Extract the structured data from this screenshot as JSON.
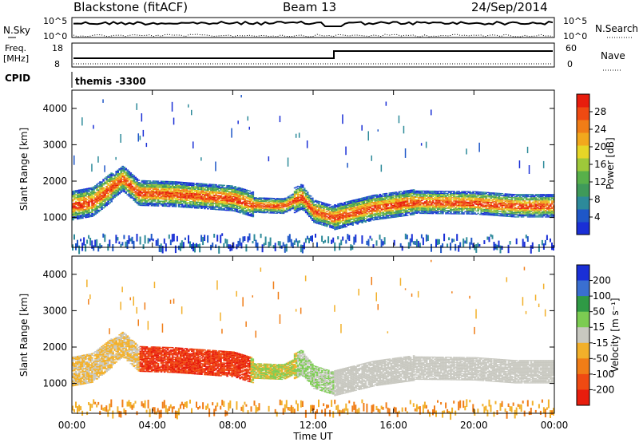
{
  "header": {
    "station": "Blackstone (fitACF)",
    "beam": "Beam 13",
    "date": "24/Sep/2014"
  },
  "summary_panels": {
    "nsky_label": "N.Sky",
    "nsky_ticks": [
      "10^5",
      "10^0"
    ],
    "nsearch_label": "N.Search",
    "nsearch_ticks": [
      "10^5",
      "10^0"
    ],
    "freq_label": "Freq.",
    "freq_unit": "[MHz]",
    "freq_ticks": [
      "18",
      "8"
    ],
    "nave_label": "Nave",
    "nave_ticks": [
      "60",
      "0"
    ],
    "cpid_label": "CPID",
    "cpid_value": "themis -3300"
  },
  "chart_data": [
    {
      "type": "heatmap",
      "title": "",
      "ylabel": "Slant Range [km]",
      "xlabel": "Time UT",
      "x_ticks": [
        "00:00",
        "04:00",
        "08:00",
        "12:00",
        "16:00",
        "20:00",
        "00:00"
      ],
      "x_range_hours": [
        0,
        24
      ],
      "ylim": [
        180,
        4500
      ],
      "y_ticks": [
        1000,
        2000,
        3000,
        4000
      ],
      "colorbar": {
        "label": "Power [dB]",
        "ticks": [
          4,
          8,
          12,
          16,
          20,
          24,
          28
        ],
        "range": [
          0,
          32
        ],
        "colors": [
          "#1a2fd6",
          "#1f57c8",
          "#2d8a9a",
          "#3f9a5a",
          "#58b04a",
          "#9ec83a",
          "#e6d627",
          "#f2a81d",
          "#f07d17",
          "#ef4a12",
          "#e81d0d"
        ]
      },
      "main_band_center_km": [
        [
          0,
          1300
        ],
        [
          1,
          1400
        ],
        [
          2.5,
          2050
        ],
        [
          3.3,
          1650
        ],
        [
          5,
          1620
        ],
        [
          8,
          1500
        ],
        [
          9,
          1330
        ],
        [
          10.5,
          1300
        ],
        [
          11.4,
          1550
        ],
        [
          12,
          1150
        ],
        [
          13,
          980
        ],
        [
          15,
          1250
        ],
        [
          17,
          1400
        ],
        [
          20,
          1380
        ],
        [
          22,
          1300
        ],
        [
          24,
          1300
        ]
      ]
    },
    {
      "type": "heatmap",
      "title": "",
      "ylabel": "Slant Range [km]",
      "xlabel": "Time UT",
      "x_ticks": [
        "00:00",
        "04:00",
        "08:00",
        "12:00",
        "16:00",
        "20:00",
        "00:00"
      ],
      "x_range_hours": [
        0,
        24
      ],
      "ylim": [
        180,
        4500
      ],
      "y_ticks": [
        1000,
        2000,
        3000,
        4000
      ],
      "colorbar": {
        "label": "Velocity [m s⁻¹]",
        "ticks": [
          200,
          100,
          50,
          15,
          -15,
          -50,
          -100,
          -200
        ],
        "colors": [
          "#1a2fd6",
          "#3a6fd0",
          "#2f9a45",
          "#7ccc52",
          "#c8c8c0",
          "#f2b02a",
          "#f07d17",
          "#ef4a12",
          "#e81d0d"
        ]
      }
    }
  ]
}
